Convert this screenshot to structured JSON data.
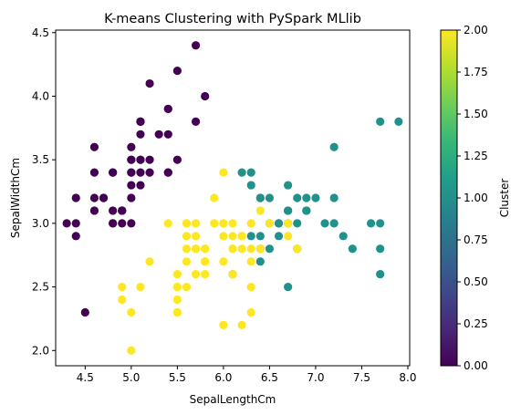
{
  "chart_data": {
    "type": "scatter",
    "title": "K-means Clustering with PySpark MLlib",
    "xlabel": "SepalLengthCm",
    "ylabel": "SepalWidthCm",
    "xlim": [
      4.18,
      8.02
    ],
    "ylim": [
      1.88,
      4.52
    ],
    "xticks": [
      4.5,
      5.0,
      5.5,
      6.0,
      6.5,
      7.0,
      7.5,
      8.0
    ],
    "xtick_labels": [
      "4.5",
      "5.0",
      "5.5",
      "6.0",
      "6.5",
      "7.0",
      "7.5",
      "8.0"
    ],
    "yticks": [
      2.0,
      2.5,
      3.0,
      3.5,
      4.0,
      4.5
    ],
    "ytick_labels": [
      "2.0",
      "2.5",
      "3.0",
      "3.5",
      "4.0",
      "4.5"
    ],
    "grid": false,
    "colorbar": {
      "label": "Cluster",
      "colormap": "viridis",
      "range": [
        0,
        2
      ],
      "ticks": [
        0,
        0.25,
        0.5,
        0.75,
        1.0,
        1.25,
        1.5,
        1.75,
        2.0
      ],
      "tick_labels": [
        "0.00",
        "0.25",
        "0.50",
        "0.75",
        "1.00",
        "1.25",
        "1.50",
        "1.75",
        "2.00"
      ],
      "stops": [
        "#440154",
        "#482878",
        "#3e4989",
        "#31688e",
        "#26828e",
        "#1f9e89",
        "#35b779",
        "#6ece58",
        "#b5de2b",
        "#fde725"
      ]
    },
    "cluster_colors": [
      "#440154",
      "#21918c",
      "#fde725"
    ],
    "points": [
      {
        "x": 5.1,
        "y": 3.5,
        "c": 0
      },
      {
        "x": 4.9,
        "y": 3.0,
        "c": 0
      },
      {
        "x": 4.7,
        "y": 3.2,
        "c": 0
      },
      {
        "x": 4.6,
        "y": 3.1,
        "c": 0
      },
      {
        "x": 5.0,
        "y": 3.6,
        "c": 0
      },
      {
        "x": 5.4,
        "y": 3.9,
        "c": 0
      },
      {
        "x": 4.6,
        "y": 3.4,
        "c": 0
      },
      {
        "x": 5.0,
        "y": 3.4,
        "c": 0
      },
      {
        "x": 4.4,
        "y": 2.9,
        "c": 0
      },
      {
        "x": 4.9,
        "y": 3.1,
        "c": 0
      },
      {
        "x": 5.4,
        "y": 3.7,
        "c": 0
      },
      {
        "x": 4.8,
        "y": 3.4,
        "c": 0
      },
      {
        "x": 4.8,
        "y": 3.0,
        "c": 0
      },
      {
        "x": 4.3,
        "y": 3.0,
        "c": 0
      },
      {
        "x": 5.8,
        "y": 4.0,
        "c": 0
      },
      {
        "x": 5.7,
        "y": 4.4,
        "c": 0
      },
      {
        "x": 5.4,
        "y": 3.9,
        "c": 0
      },
      {
        "x": 5.1,
        "y": 3.5,
        "c": 0
      },
      {
        "x": 5.7,
        "y": 3.8,
        "c": 0
      },
      {
        "x": 5.1,
        "y": 3.8,
        "c": 0
      },
      {
        "x": 5.4,
        "y": 3.4,
        "c": 0
      },
      {
        "x": 5.1,
        "y": 3.7,
        "c": 0
      },
      {
        "x": 4.6,
        "y": 3.6,
        "c": 0
      },
      {
        "x": 5.1,
        "y": 3.3,
        "c": 0
      },
      {
        "x": 4.8,
        "y": 3.4,
        "c": 0
      },
      {
        "x": 5.0,
        "y": 3.0,
        "c": 0
      },
      {
        "x": 5.0,
        "y": 3.4,
        "c": 0
      },
      {
        "x": 5.2,
        "y": 3.5,
        "c": 0
      },
      {
        "x": 5.2,
        "y": 3.4,
        "c": 0
      },
      {
        "x": 4.7,
        "y": 3.2,
        "c": 0
      },
      {
        "x": 4.8,
        "y": 3.1,
        "c": 0
      },
      {
        "x": 5.4,
        "y": 3.4,
        "c": 0
      },
      {
        "x": 5.2,
        "y": 4.1,
        "c": 0
      },
      {
        "x": 5.5,
        "y": 4.2,
        "c": 0
      },
      {
        "x": 4.9,
        "y": 3.1,
        "c": 0
      },
      {
        "x": 5.0,
        "y": 3.2,
        "c": 0
      },
      {
        "x": 5.5,
        "y": 3.5,
        "c": 0
      },
      {
        "x": 4.9,
        "y": 3.1,
        "c": 0
      },
      {
        "x": 4.4,
        "y": 3.0,
        "c": 0
      },
      {
        "x": 5.1,
        "y": 3.4,
        "c": 0
      },
      {
        "x": 5.0,
        "y": 3.5,
        "c": 0
      },
      {
        "x": 4.5,
        "y": 2.3,
        "c": 0
      },
      {
        "x": 4.4,
        "y": 3.2,
        "c": 0
      },
      {
        "x": 5.0,
        "y": 3.5,
        "c": 0
      },
      {
        "x": 5.1,
        "y": 3.8,
        "c": 0
      },
      {
        "x": 4.8,
        "y": 3.0,
        "c": 0
      },
      {
        "x": 5.1,
        "y": 3.8,
        "c": 0
      },
      {
        "x": 4.6,
        "y": 3.2,
        "c": 0
      },
      {
        "x": 5.3,
        "y": 3.7,
        "c": 0
      },
      {
        "x": 5.0,
        "y": 3.3,
        "c": 0
      },
      {
        "x": 7.0,
        "y": 3.2,
        "c": 1
      },
      {
        "x": 6.4,
        "y": 3.2,
        "c": 1
      },
      {
        "x": 6.9,
        "y": 3.1,
        "c": 1
      },
      {
        "x": 6.5,
        "y": 2.8,
        "c": 1
      },
      {
        "x": 6.3,
        "y": 3.3,
        "c": 1
      },
      {
        "x": 6.6,
        "y": 2.9,
        "c": 1
      },
      {
        "x": 6.7,
        "y": 3.1,
        "c": 1
      },
      {
        "x": 6.1,
        "y": 2.6,
        "c": 1
      },
      {
        "x": 6.3,
        "y": 2.9,
        "c": 1
      },
      {
        "x": 6.4,
        "y": 2.9,
        "c": 1
      },
      {
        "x": 6.6,
        "y": 3.0,
        "c": 1
      },
      {
        "x": 6.8,
        "y": 2.8,
        "c": 1
      },
      {
        "x": 6.7,
        "y": 3.0,
        "c": 1
      },
      {
        "x": 7.1,
        "y": 3.0,
        "c": 1
      },
      {
        "x": 6.5,
        "y": 3.0,
        "c": 1
      },
      {
        "x": 7.6,
        "y": 3.0,
        "c": 1
      },
      {
        "x": 7.3,
        "y": 2.9,
        "c": 1
      },
      {
        "x": 6.7,
        "y": 2.5,
        "c": 1
      },
      {
        "x": 7.2,
        "y": 3.6,
        "c": 1
      },
      {
        "x": 6.4,
        "y": 2.7,
        "c": 1
      },
      {
        "x": 6.8,
        "y": 3.0,
        "c": 1
      },
      {
        "x": 6.4,
        "y": 3.2,
        "c": 1
      },
      {
        "x": 7.7,
        "y": 3.8,
        "c": 1
      },
      {
        "x": 7.7,
        "y": 2.6,
        "c": 1
      },
      {
        "x": 6.9,
        "y": 3.2,
        "c": 1
      },
      {
        "x": 7.7,
        "y": 2.8,
        "c": 1
      },
      {
        "x": 6.7,
        "y": 3.3,
        "c": 1
      },
      {
        "x": 7.2,
        "y": 3.2,
        "c": 1
      },
      {
        "x": 6.4,
        "y": 2.8,
        "c": 1
      },
      {
        "x": 7.2,
        "y": 3.0,
        "c": 1
      },
      {
        "x": 7.4,
        "y": 2.8,
        "c": 1
      },
      {
        "x": 7.9,
        "y": 3.8,
        "c": 1
      },
      {
        "x": 6.3,
        "y": 3.4,
        "c": 1
      },
      {
        "x": 7.7,
        "y": 3.0,
        "c": 1
      },
      {
        "x": 6.9,
        "y": 3.1,
        "c": 1
      },
      {
        "x": 6.7,
        "y": 3.1,
        "c": 1
      },
      {
        "x": 6.2,
        "y": 3.4,
        "c": 1
      },
      {
        "x": 6.8,
        "y": 3.2,
        "c": 1
      },
      {
        "x": 6.5,
        "y": 3.2,
        "c": 1
      },
      {
        "x": 6.6,
        "y": 3.0,
        "c": 1
      },
      {
        "x": 5.5,
        "y": 2.3,
        "c": 2
      },
      {
        "x": 5.7,
        "y": 2.8,
        "c": 2
      },
      {
        "x": 4.9,
        "y": 2.4,
        "c": 2
      },
      {
        "x": 5.2,
        "y": 2.7,
        "c": 2
      },
      {
        "x": 5.0,
        "y": 2.0,
        "c": 2
      },
      {
        "x": 5.9,
        "y": 3.0,
        "c": 2
      },
      {
        "x": 6.0,
        "y": 2.2,
        "c": 2
      },
      {
        "x": 6.1,
        "y": 2.9,
        "c": 2
      },
      {
        "x": 5.6,
        "y": 2.9,
        "c": 2
      },
      {
        "x": 5.6,
        "y": 3.0,
        "c": 2
      },
      {
        "x": 5.8,
        "y": 2.7,
        "c": 2
      },
      {
        "x": 6.2,
        "y": 2.2,
        "c": 2
      },
      {
        "x": 5.6,
        "y": 2.5,
        "c": 2
      },
      {
        "x": 5.9,
        "y": 3.2,
        "c": 2
      },
      {
        "x": 6.1,
        "y": 2.8,
        "c": 2
      },
      {
        "x": 6.3,
        "y": 2.5,
        "c": 2
      },
      {
        "x": 6.0,
        "y": 2.9,
        "c": 2
      },
      {
        "x": 5.7,
        "y": 2.6,
        "c": 2
      },
      {
        "x": 5.5,
        "y": 2.4,
        "c": 2
      },
      {
        "x": 5.8,
        "y": 2.7,
        "c": 2
      },
      {
        "x": 6.0,
        "y": 2.7,
        "c": 2
      },
      {
        "x": 5.4,
        "y": 3.0,
        "c": 2
      },
      {
        "x": 6.0,
        "y": 3.4,
        "c": 2
      },
      {
        "x": 6.3,
        "y": 2.3,
        "c": 2
      },
      {
        "x": 5.6,
        "y": 3.0,
        "c": 2
      },
      {
        "x": 5.5,
        "y": 2.5,
        "c": 2
      },
      {
        "x": 5.5,
        "y": 2.6,
        "c": 2
      },
      {
        "x": 6.1,
        "y": 3.0,
        "c": 2
      },
      {
        "x": 5.8,
        "y": 2.6,
        "c": 2
      },
      {
        "x": 5.0,
        "y": 2.3,
        "c": 2
      },
      {
        "x": 5.6,
        "y": 2.7,
        "c": 2
      },
      {
        "x": 5.7,
        "y": 3.0,
        "c": 2
      },
      {
        "x": 5.7,
        "y": 2.9,
        "c": 2
      },
      {
        "x": 6.2,
        "y": 2.9,
        "c": 2
      },
      {
        "x": 5.1,
        "y": 2.5,
        "c": 2
      },
      {
        "x": 5.7,
        "y": 2.8,
        "c": 2
      },
      {
        "x": 5.8,
        "y": 2.7,
        "c": 2
      },
      {
        "x": 4.9,
        "y": 2.5,
        "c": 2
      },
      {
        "x": 6.7,
        "y": 2.9,
        "c": 2
      },
      {
        "x": 6.5,
        "y": 3.0,
        "c": 2
      },
      {
        "x": 6.8,
        "y": 2.8,
        "c": 2
      },
      {
        "x": 5.8,
        "y": 2.8,
        "c": 2
      },
      {
        "x": 6.4,
        "y": 3.1,
        "c": 2
      },
      {
        "x": 6.0,
        "y": 3.0,
        "c": 2
      },
      {
        "x": 6.3,
        "y": 2.7,
        "c": 2
      },
      {
        "x": 6.2,
        "y": 2.8,
        "c": 2
      },
      {
        "x": 6.1,
        "y": 2.8,
        "c": 2
      },
      {
        "x": 6.0,
        "y": 2.2,
        "c": 2
      },
      {
        "x": 6.3,
        "y": 2.8,
        "c": 2
      },
      {
        "x": 6.1,
        "y": 2.6,
        "c": 2
      },
      {
        "x": 6.3,
        "y": 3.0,
        "c": 2
      },
      {
        "x": 6.7,
        "y": 3.0,
        "c": 2
      },
      {
        "x": 6.4,
        "y": 2.8,
        "c": 2
      },
      {
        "x": 5.9,
        "y": 3.0,
        "c": 2
      },
      {
        "x": 5.5,
        "y": 2.5,
        "c": 2
      },
      {
        "x": 5.5,
        "y": 2.3,
        "c": 2
      },
      {
        "x": 5.8,
        "y": 2.8,
        "c": 2
      },
      {
        "x": 6.2,
        "y": 2.9,
        "c": 2
      },
      {
        "x": 5.6,
        "y": 2.8,
        "c": 2
      },
      {
        "x": 6.0,
        "y": 3.0,
        "c": 2
      }
    ]
  }
}
